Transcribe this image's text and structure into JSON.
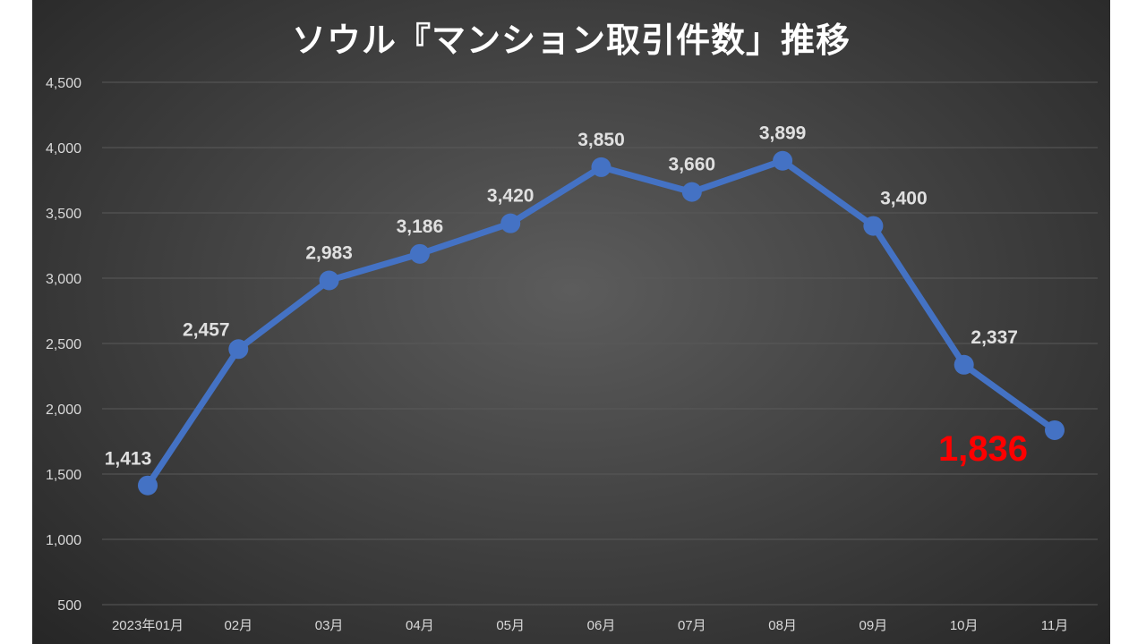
{
  "chart_data": {
    "type": "line",
    "title": "ソウル『マンション取引件数」推移",
    "categories": [
      "2023年01月",
      "02月",
      "03月",
      "04月",
      "05月",
      "06月",
      "07月",
      "08月",
      "09月",
      "10月",
      "11月"
    ],
    "series": [
      {
        "values": [
          1413,
          2457,
          2983,
          3186,
          3420,
          3850,
          3660,
          3899,
          3400,
          2337,
          1836
        ],
        "labels": [
          "1,413",
          "2,457",
          "2,983",
          "3,186",
          "3,420",
          "3,850",
          "3,660",
          "3,899",
          "3,400",
          "2,337",
          "1,836"
        ]
      }
    ],
    "highlight_index": 10,
    "ylim": [
      500,
      4500
    ],
    "yticks": [
      500,
      1000,
      1500,
      2000,
      2500,
      3000,
      3500,
      4000,
      4500
    ],
    "ytick_labels": [
      "500",
      "1,000",
      "1,500",
      "2,000",
      "2,500",
      "3,000",
      "3,500",
      "4,000",
      "4,500"
    ],
    "grid": true,
    "colors": {
      "line": "#4472c4",
      "highlight_label": "#ff0000",
      "grid": "#595959"
    }
  }
}
